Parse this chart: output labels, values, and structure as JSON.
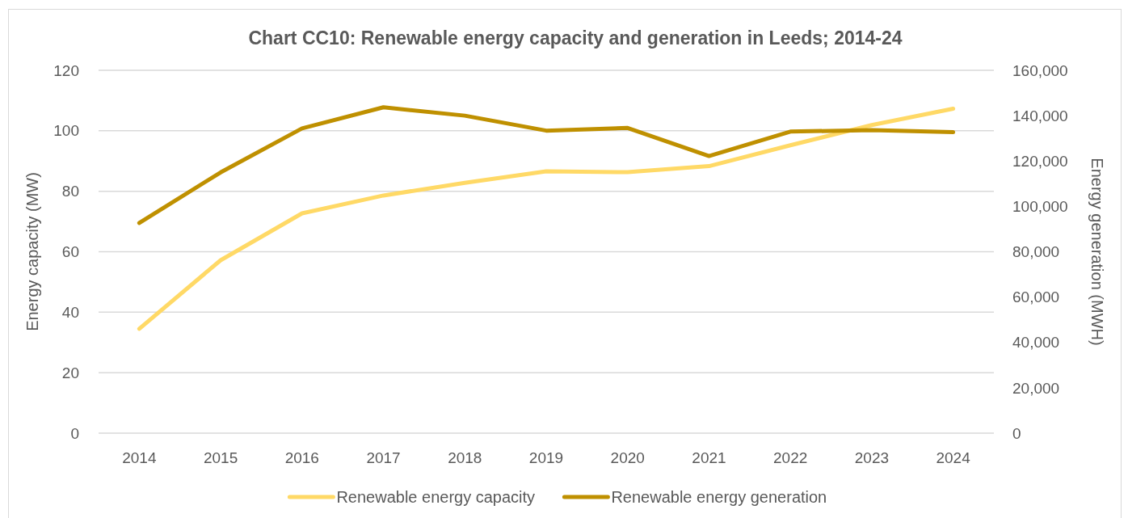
{
  "chart_data": {
    "type": "line",
    "title": "Chart CC10: Renewable energy capacity and generation in Leeds; 2014-24",
    "ylabel": "Energy capacity (MW)",
    "y2label": "Energy generation (MWH)",
    "categories": [
      "2014",
      "2015",
      "2016",
      "2017",
      "2018",
      "2019",
      "2020",
      "2021",
      "2022",
      "2023",
      "2024"
    ],
    "series": [
      {
        "name": "Renewable energy capacity",
        "color": "#ffd966",
        "values": [
          34.5,
          57.2,
          72.7,
          78.6,
          82.8,
          86.6,
          86.3,
          88.3,
          95.2,
          101.9,
          107.3
        ]
      },
      {
        "name": "Renewable energy generation",
        "color": "#bf9000",
        "axis": "y2",
        "values": [
          92700,
          115000,
          134400,
          143700,
          140000,
          133400,
          134600,
          122200,
          133000,
          133600,
          132700
        ]
      }
    ],
    "ylim": [
      0,
      120
    ],
    "yticks": [
      0,
      20,
      40,
      60,
      80,
      100,
      120
    ],
    "y2lim": [
      0,
      160000
    ],
    "y2ticks": [
      0,
      {
        "value": 20000,
        "label": "20,000"
      },
      {
        "value": 40000,
        "label": "40,000"
      },
      {
        "value": 60000,
        "label": "60,000"
      },
      {
        "value": 80000,
        "label": "80,000"
      },
      {
        "value": 100000,
        "label": "100,000"
      },
      {
        "value": 120000,
        "label": "120,000"
      },
      {
        "value": 140000,
        "label": "140,000"
      },
      {
        "value": 160000,
        "label": "160,000"
      }
    ],
    "grid": "y",
    "legend": "bottom",
    "line_style": "solid"
  }
}
